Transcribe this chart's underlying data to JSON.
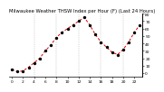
{
  "title": "Milwaukee Weather THSW Index per Hour (F) (Last 24 Hours)",
  "hours": [
    0,
    1,
    2,
    3,
    4,
    5,
    6,
    7,
    8,
    9,
    10,
    11,
    12,
    13,
    14,
    15,
    16,
    17,
    18,
    19,
    20,
    21,
    22,
    23
  ],
  "values": [
    5,
    2,
    3,
    8,
    14,
    20,
    30,
    38,
    48,
    55,
    60,
    65,
    70,
    75,
    65,
    52,
    42,
    35,
    28,
    25,
    32,
    42,
    55,
    65
  ],
  "ylim": [
    -5,
    80
  ],
  "ytick_vals": [
    0,
    10,
    20,
    30,
    40,
    50,
    60,
    70,
    80
  ],
  "ytick_labels": [
    "0",
    "10",
    "20",
    "30",
    "40",
    "50",
    "60",
    "70",
    "80"
  ],
  "xtick_positions": [
    0,
    2,
    4,
    6,
    8,
    10,
    12,
    14,
    16,
    18,
    20,
    22
  ],
  "xtick_labels": [
    "0",
    "2",
    "4",
    "6",
    "8",
    "10",
    "12",
    "14",
    "16",
    "18",
    "20",
    "22"
  ],
  "vgrid_positions": [
    4,
    8,
    12,
    16,
    20
  ],
  "line_color": "#dd0000",
  "dot_color": "#000000",
  "grid_color": "#aaaaaa",
  "bg_color": "#ffffff",
  "title_color": "#000000",
  "title_fontsize": 3.8,
  "tick_fontsize": 3.2,
  "line_width": 0.7,
  "dot_size": 2.0
}
